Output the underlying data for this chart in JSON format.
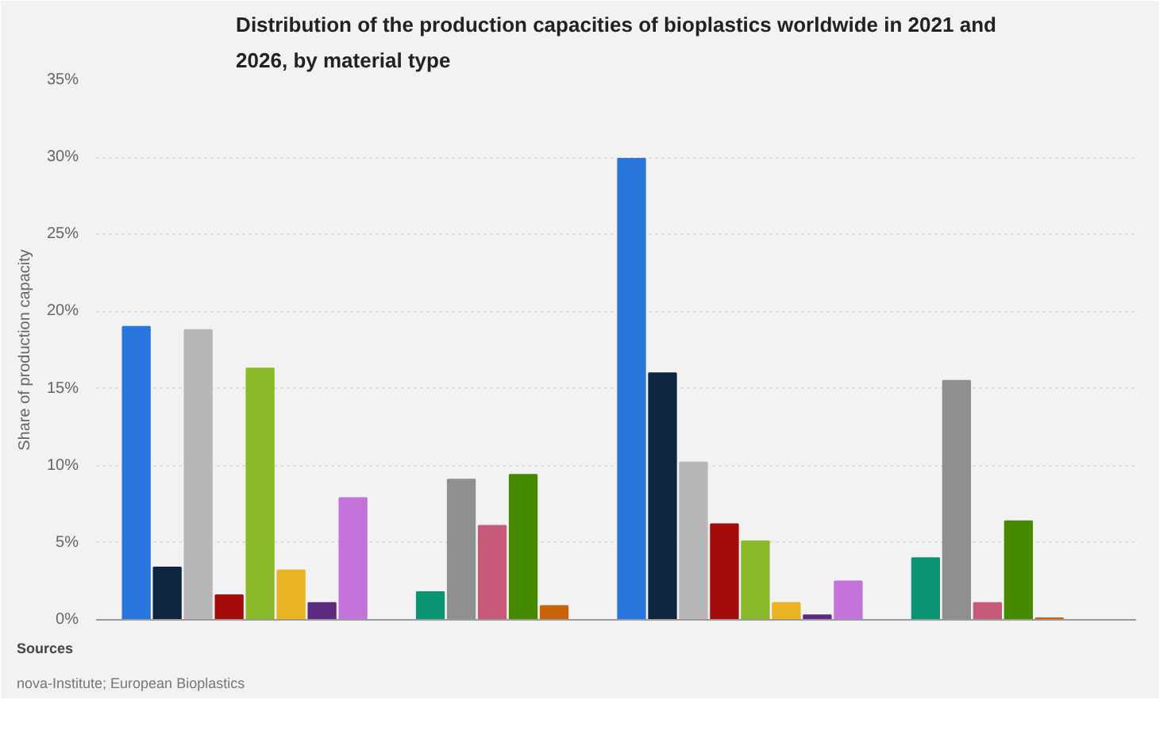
{
  "chart_data": {
    "type": "bar",
    "title": "Distribution of the production capacities of bioplastics worldwide in 2021 and 2026, by material type",
    "ylabel": "Share of production capacity",
    "categories": [
      null,
      null,
      null,
      null
    ],
    "series": [
      {
        "color": "#2876dd",
        "values": [
          19.0,
          null,
          29.9,
          null
        ]
      },
      {
        "color": "#0f2640",
        "values": [
          3.4,
          null,
          16.0,
          null
        ]
      },
      {
        "color": "#b7b7b7",
        "values": [
          18.8,
          null,
          10.2,
          null
        ]
      },
      {
        "color": "#a50b0b",
        "values": [
          1.6,
          null,
          6.2,
          null
        ]
      },
      {
        "color": "#8aba2a",
        "values": [
          16.3,
          null,
          5.1,
          null
        ]
      },
      {
        "color": "#e9b324",
        "values": [
          3.2,
          null,
          1.1,
          null
        ]
      },
      {
        "color": "#5c2a7e",
        "values": [
          1.1,
          null,
          0.3,
          null
        ]
      },
      {
        "color": "#c373d9",
        "values": [
          7.9,
          null,
          2.5,
          null
        ]
      },
      {
        "color": "#0a9474",
        "values": [
          null,
          1.8,
          null,
          4.0
        ]
      },
      {
        "color": "#8f8f8f",
        "values": [
          null,
          9.1,
          null,
          15.5
        ]
      },
      {
        "color": "#c75a78",
        "values": [
          null,
          6.1,
          null,
          1.1
        ]
      },
      {
        "color": "#468a00",
        "values": [
          null,
          9.4,
          null,
          6.4
        ]
      },
      {
        "color": "#c9640c",
        "values": [
          null,
          0.9,
          null,
          0.1
        ]
      }
    ],
    "ylim": [
      0,
      35
    ],
    "yticks": [
      {
        "value": 0,
        "label": "0%"
      },
      {
        "value": 5,
        "label": "5%"
      },
      {
        "value": 10,
        "label": "10%"
      },
      {
        "value": 15,
        "label": "15%"
      },
      {
        "value": 20,
        "label": "20%"
      },
      {
        "value": 25,
        "label": "25%"
      },
      {
        "value": 30,
        "label": "30%"
      },
      {
        "value": 35,
        "label": "35%"
      }
    ],
    "grid": "y",
    "tick_labels": "y",
    "annotations": [
      "Sources",
      "nova-Institute; European Bioplastics"
    ]
  }
}
